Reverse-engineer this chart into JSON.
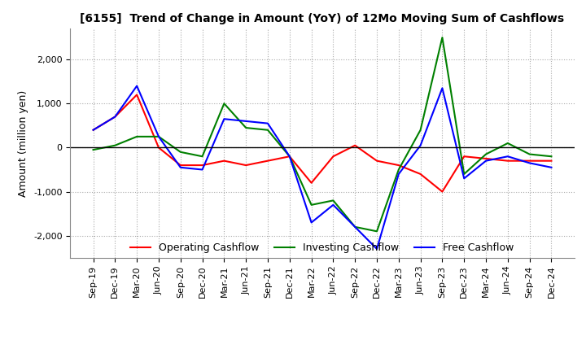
{
  "title": "[6155]  Trend of Change in Amount (YoY) of 12Mo Moving Sum of Cashflows",
  "ylabel": "Amount (million yen)",
  "xlabels": [
    "Sep-19",
    "Dec-19",
    "Mar-20",
    "Jun-20",
    "Sep-20",
    "Dec-20",
    "Mar-21",
    "Jun-21",
    "Sep-21",
    "Dec-21",
    "Mar-22",
    "Jun-22",
    "Sep-22",
    "Dec-22",
    "Mar-23",
    "Jun-23",
    "Sep-23",
    "Dec-23",
    "Mar-24",
    "Jun-24",
    "Sep-24",
    "Dec-24"
  ],
  "operating": [
    400,
    700,
    1200,
    0,
    -400,
    -400,
    -300,
    -400,
    -300,
    -200,
    -800,
    -200,
    50,
    -300,
    -400,
    -600,
    -1000,
    -200,
    -250,
    -300,
    -300,
    -300
  ],
  "investing": [
    -50,
    50,
    250,
    250,
    -100,
    -200,
    1000,
    450,
    400,
    -200,
    -1300,
    -1200,
    -1800,
    -1900,
    -500,
    400,
    2500,
    -600,
    -150,
    100,
    -150,
    -200
  ],
  "free": [
    400,
    700,
    1400,
    250,
    -450,
    -500,
    650,
    600,
    550,
    -200,
    -1700,
    -1300,
    -1800,
    -2300,
    -600,
    50,
    1350,
    -700,
    -300,
    -200,
    -350,
    -450
  ],
  "ylim": [
    -2500,
    2700
  ],
  "yticks": [
    -2000,
    -1000,
    0,
    1000,
    2000
  ],
  "operating_color": "#ff0000",
  "investing_color": "#008000",
  "free_color": "#0000ff",
  "background_color": "#ffffff",
  "legend_labels": [
    "Operating Cashflow",
    "Investing Cashflow",
    "Free Cashflow"
  ]
}
